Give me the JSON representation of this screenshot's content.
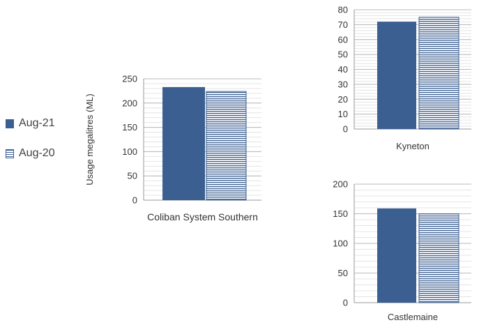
{
  "legend": {
    "items": [
      {
        "label": "Aug-21",
        "color": "#3b5f91",
        "pattern": "solid"
      },
      {
        "label": "Aug-20",
        "color": "#3b5f91",
        "pattern": "horizontal-stripes"
      }
    ]
  },
  "chart_data": [
    {
      "type": "bar",
      "categories": [
        "Coliban System Southern"
      ],
      "series": [
        {
          "name": "Aug-21",
          "values": [
            233
          ]
        },
        {
          "name": "Aug-20",
          "values": [
            224
          ]
        }
      ],
      "ylabel": "Usage megalitres (ML)",
      "xlabel": "Coliban System Southern",
      "ylim": [
        0,
        250
      ],
      "yticks": [
        0,
        50,
        100,
        150,
        200,
        250
      ],
      "grid": true
    },
    {
      "type": "bar",
      "categories": [
        "Kyneton"
      ],
      "series": [
        {
          "name": "Aug-21",
          "values": [
            72
          ]
        },
        {
          "name": "Aug-20",
          "values": [
            75
          ]
        }
      ],
      "xlabel": "Kyneton",
      "ylim": [
        0,
        80
      ],
      "yticks": [
        0,
        10,
        20,
        30,
        40,
        50,
        60,
        70,
        80
      ],
      "grid": true
    },
    {
      "type": "bar",
      "categories": [
        "Castlemaine"
      ],
      "series": [
        {
          "name": "Aug-21",
          "values": [
            159
          ]
        },
        {
          "name": "Aug-20",
          "values": [
            150
          ]
        }
      ],
      "xlabel": "Castlemaine",
      "ylim": [
        0,
        200
      ],
      "yticks": [
        0,
        50,
        100,
        150,
        200
      ],
      "grid": true
    }
  ]
}
